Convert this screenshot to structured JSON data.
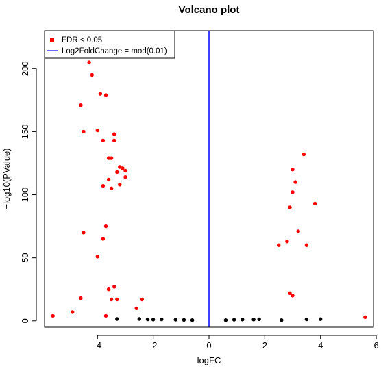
{
  "chart_data": {
    "type": "scatter",
    "title": "Volcano plot",
    "xlabel": "logFC",
    "ylabel": "−log10(PValue)",
    "xlim": [
      -5.9,
      5.9
    ],
    "ylim": [
      -5,
      230
    ],
    "x_ticks": [
      -4,
      -2,
      0,
      2,
      4,
      6
    ],
    "y_ticks": [
      0,
      50,
      100,
      150,
      200
    ],
    "vertical_line": {
      "x": 0,
      "color": "#0000ff"
    },
    "grid": false,
    "legend": {
      "position": "top-left",
      "entries": [
        {
          "label": "FDR < 0.05",
          "type": "point",
          "color": "#ff0000"
        },
        {
          "label": "Log2FoldChange = mod(0.01)",
          "type": "line",
          "color": "#0000ff"
        }
      ]
    },
    "series": [
      {
        "color": "#ff0000",
        "points": [
          [
            -4.3,
            205
          ],
          [
            -4.2,
            195
          ],
          [
            -4.6,
            171
          ],
          [
            -3.9,
            180
          ],
          [
            -3.7,
            179
          ],
          [
            -4.0,
            151
          ],
          [
            -3.8,
            143
          ],
          [
            -4.5,
            150
          ],
          [
            -3.4,
            148
          ],
          [
            -3.4,
            143
          ],
          [
            -3.6,
            129
          ],
          [
            -3.5,
            129
          ],
          [
            -3.2,
            122
          ],
          [
            -3.1,
            121
          ],
          [
            -3.0,
            119
          ],
          [
            -3.3,
            118
          ],
          [
            -3.0,
            114
          ],
          [
            -3.6,
            112
          ],
          [
            -3.2,
            108
          ],
          [
            -3.8,
            107
          ],
          [
            -3.5,
            105
          ],
          [
            -3.7,
            75
          ],
          [
            -3.8,
            65
          ],
          [
            -4.0,
            51
          ],
          [
            -4.5,
            70
          ],
          [
            -5.6,
            4
          ],
          [
            -4.9,
            7
          ],
          [
            -3.7,
            4
          ],
          [
            -3.5,
            17
          ],
          [
            -3.3,
            17
          ],
          [
            -3.4,
            27
          ],
          [
            -3.6,
            25
          ],
          [
            -4.6,
            18
          ],
          [
            -2.4,
            17
          ],
          [
            -2.6,
            10
          ],
          [
            3.4,
            132
          ],
          [
            3.0,
            120
          ],
          [
            3.1,
            110
          ],
          [
            3.0,
            102
          ],
          [
            2.9,
            90
          ],
          [
            3.8,
            93
          ],
          [
            3.5,
            60
          ],
          [
            3.2,
            71
          ],
          [
            2.9,
            22
          ],
          [
            3.0,
            20
          ],
          [
            5.6,
            3
          ],
          [
            2.8,
            63
          ],
          [
            2.5,
            60
          ]
        ]
      },
      {
        "color": "#000000",
        "points": [
          [
            -3.3,
            1.5
          ],
          [
            -2.5,
            1.5
          ],
          [
            -2.2,
            1.2
          ],
          [
            -2.0,
            1.0
          ],
          [
            -1.7,
            1.2
          ],
          [
            -1.2,
            0.9
          ],
          [
            -0.9,
            0.8
          ],
          [
            -0.6,
            0.6
          ],
          [
            0.6,
            0.6
          ],
          [
            0.9,
            0.9
          ],
          [
            1.2,
            1.0
          ],
          [
            1.6,
            1.1
          ],
          [
            1.8,
            1.3
          ],
          [
            2.6,
            0.6
          ],
          [
            3.5,
            1.2
          ],
          [
            4.0,
            1.4
          ]
        ]
      }
    ]
  }
}
